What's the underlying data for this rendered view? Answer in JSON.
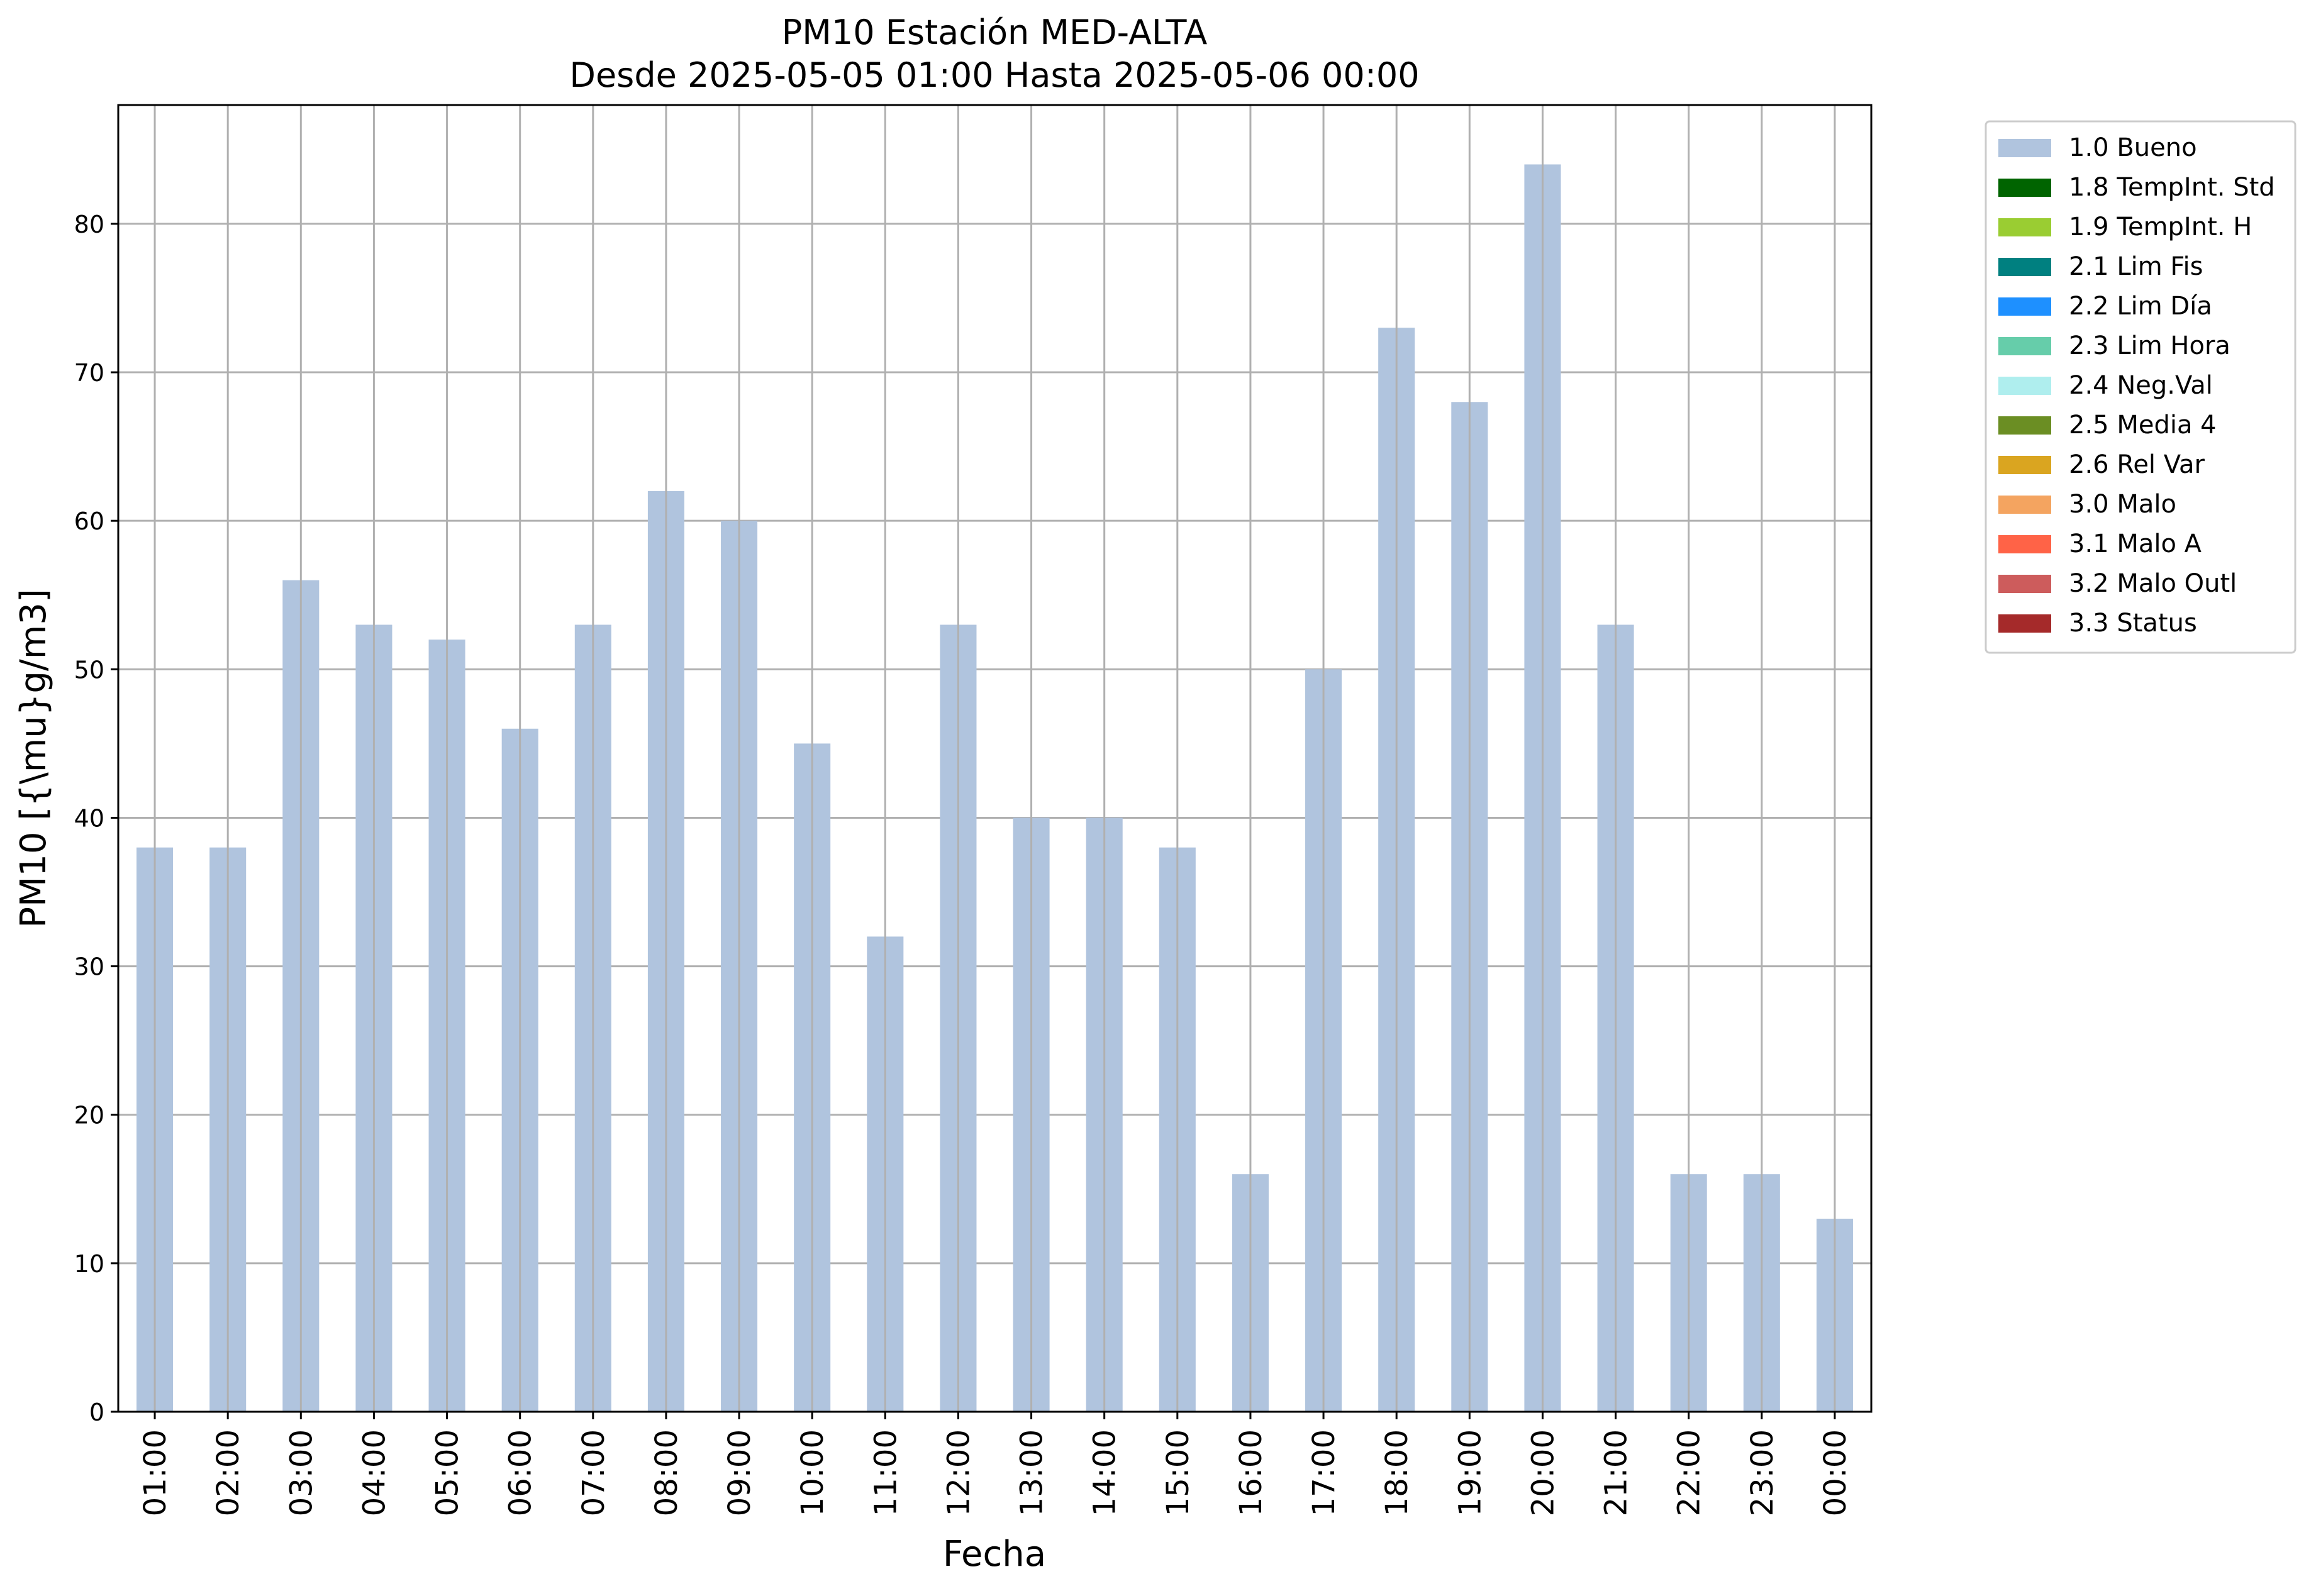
{
  "chart_data": {
    "type": "bar",
    "title_line1": "PM10 Estación MED-ALTA",
    "title_line2": "Desde 2025-05-05 01:00 Hasta 2025-05-06 00:00",
    "xlabel": "Fecha",
    "ylabel": "PM10 [{\\mu}g/m3]",
    "ylim": [
      0,
      88
    ],
    "yticks": [
      0,
      10,
      20,
      30,
      40,
      50,
      60,
      70,
      80
    ],
    "grid": true,
    "legend_position": "outside-top-right",
    "categories": [
      "01:00",
      "02:00",
      "03:00",
      "04:00",
      "05:00",
      "06:00",
      "07:00",
      "08:00",
      "09:00",
      "10:00",
      "11:00",
      "12:00",
      "13:00",
      "14:00",
      "15:00",
      "16:00",
      "17:00",
      "18:00",
      "19:00",
      "20:00",
      "21:00",
      "22:00",
      "23:00",
      "00:00"
    ],
    "series": [
      {
        "name": "1.0 Bueno",
        "color": "#b0c4de",
        "values": [
          38,
          38,
          56,
          53,
          52,
          46,
          53,
          62,
          60,
          45,
          32,
          53,
          40,
          40,
          38,
          16,
          50,
          73,
          68,
          84,
          53,
          16,
          16,
          13
        ]
      }
    ],
    "legend": [
      {
        "label": "1.0 Bueno",
        "color": "#b0c4de"
      },
      {
        "label": "1.8 TempInt. Std",
        "color": "#006400"
      },
      {
        "label": "1.9 TempInt. H",
        "color": "#9acd32"
      },
      {
        "label": "2.1 Lim Fis",
        "color": "#008080"
      },
      {
        "label": "2.2 Lim Día",
        "color": "#1e90ff"
      },
      {
        "label": "2.3 Lim Hora",
        "color": "#66cdaa"
      },
      {
        "label": "2.4 Neg.Val",
        "color": "#afeeee"
      },
      {
        "label": "2.5 Media 4",
        "color": "#6b8e23"
      },
      {
        "label": "2.6 Rel Var",
        "color": "#daa520"
      },
      {
        "label": "3.0 Malo",
        "color": "#f4a460"
      },
      {
        "label": "3.1 Malo A",
        "color": "#ff6347"
      },
      {
        "label": "3.2 Malo Outl",
        "color": "#cd5c5c"
      },
      {
        "label": "3.3 Status",
        "color": "#a52a2a"
      }
    ],
    "grid_color": "#b0b0b0"
  }
}
